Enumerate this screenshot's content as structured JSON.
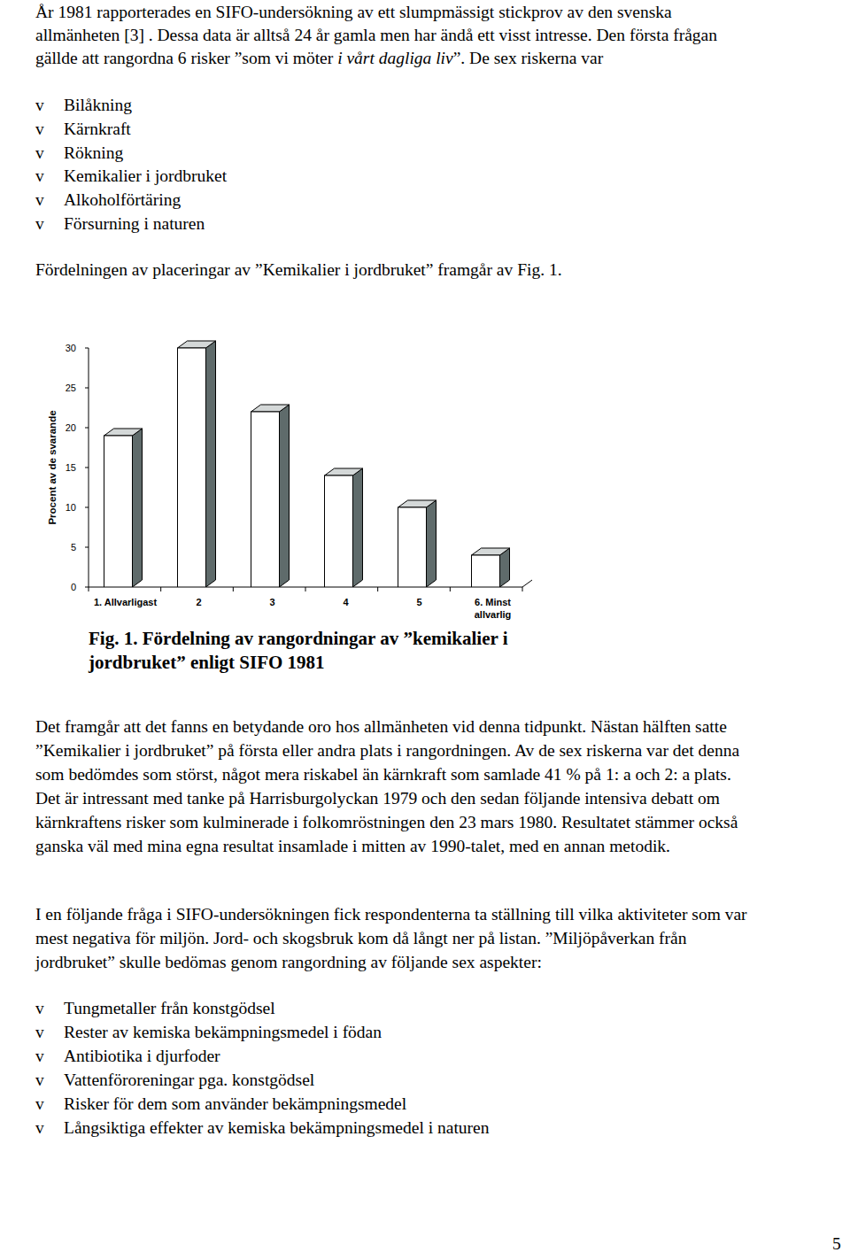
{
  "document": {
    "intro": {
      "lines": [
        "År 1981 rapporterades en SIFO-undersökning av ett slumpmässigt stickprov av den svenska",
        "allmänheten [3] . Dessa data är alltså 24 år gamla men har ändå ett visst intresse. Den första frågan",
        "gällde att rangordna 6 risker ”som vi möter i vårt dagliga liv”. De sex riskerna var"
      ],
      "emphasis": "i vårt dagliga liv"
    },
    "bullet": "v",
    "risks": [
      "Bilåkning",
      "Kärnkraft",
      "Rökning",
      "Kemikalier i jordbruket",
      "Alkoholförtäring",
      "Försurning i naturen"
    ],
    "figure_intro": "Fördelningen av placeringar av ”Kemikalier i jordbruket” framgår av Fig. 1.",
    "caption": [
      "Fig. 1. Fördelning av rangordningar av ”kemikalier i",
      "jordbruket” enligt SIFO 1981"
    ],
    "discussion": [
      "Det framgår att det fanns en betydande oro hos allmänheten vid denna tidpunkt. Nästan hälften satte",
      "”Kemikalier i jordbruket” på första eller andra plats i rangordningen. Av de sex riskerna var det denna",
      "som bedömdes som störst, något mera riskabel än kärnkraft som samlade 41 % på 1: a och 2: a plats.",
      "Det är intressant med tanke på Harrisburgolyckan 1979 och den sedan följande intensiva debatt om",
      "kärnkraftens risker som kulminerade i folkomröstningen den 23 mars 1980. Resultatet stämmer också",
      "ganska väl med mina egna resultat insamlade i mitten av 1990-talet, med en annan metodik."
    ],
    "followup": [
      "I en följande fråga i SIFO-undersökningen fick respondenterna ta ställning till vilka aktiviteter som var",
      "mest negativa för miljön. Jord- och skogsbruk kom då långt ner på listan. ”Miljöpåverkan från",
      "jordbruket” skulle bedömas genom rangordning av följande sex aspekter:"
    ],
    "aspects": [
      "Tungmetaller från konstgödsel",
      "Rester av kemiska bekämpningsmedel i födan",
      "Antibiotika i djurfoder",
      "Vattenföroreningar pga. konstgödsel",
      "Risker för dem som använder bekämpningsmedel",
      "Långsiktiga effekter av kemiska bekämpningsmedel i naturen"
    ],
    "page_number": "5"
  },
  "chart_data": {
    "type": "bar",
    "y_label": "Procent av de svarande",
    "categories": [
      "1. Allvarligast",
      "2",
      "3",
      "4",
      "5",
      "6. Minst allvarlig"
    ],
    "values": [
      19,
      30,
      22,
      14,
      10,
      4
    ],
    "color": "#ffffff",
    "ylim": [
      0,
      30
    ],
    "yticks": [
      0,
      5,
      10,
      15,
      20,
      25,
      30
    ],
    "grid": false
  }
}
